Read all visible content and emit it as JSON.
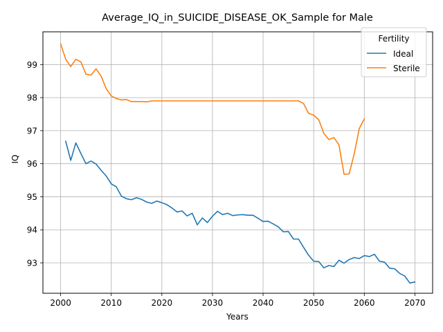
{
  "chart_data": {
    "type": "line",
    "title": "Average_IQ_in_SUICIDE_DISEASE_OK_Sample for Male",
    "xlabel": "Years",
    "ylabel": "IQ",
    "xlim": [
      1996.5,
      2073.5
    ],
    "ylim": [
      92.08,
      99.99
    ],
    "x_ticks": [
      2000,
      2010,
      2020,
      2030,
      2040,
      2050,
      2060,
      2070
    ],
    "y_ticks": [
      93,
      94,
      95,
      96,
      97,
      98,
      99
    ],
    "grid": true,
    "legend": {
      "title": "Fertility",
      "position": "top-right"
    },
    "series": [
      {
        "name": "Ideal",
        "color": "#1f77b4",
        "x": [
          2001,
          2002,
          2003,
          2004,
          2005,
          2006,
          2007,
          2008,
          2009,
          2010,
          2011,
          2012,
          2013,
          2014,
          2015,
          2016,
          2017,
          2018,
          2019,
          2020,
          2021,
          2022,
          2023,
          2024,
          2025,
          2026,
          2027,
          2028,
          2029,
          2030,
          2031,
          2032,
          2033,
          2034,
          2035,
          2036,
          2037,
          2038,
          2039,
          2040,
          2041,
          2042,
          2043,
          2044,
          2045,
          2046,
          2047,
          2048,
          2049,
          2050,
          2051,
          2052,
          2053,
          2054,
          2055,
          2056,
          2057,
          2058,
          2059,
          2060,
          2061,
          2062,
          2063,
          2064,
          2065,
          2066,
          2067,
          2068,
          2069,
          2070
        ],
        "values": [
          96.68,
          96.1,
          96.63,
          96.31,
          96.0,
          96.08,
          95.99,
          95.8,
          95.63,
          95.39,
          95.3,
          95.02,
          94.94,
          94.91,
          94.97,
          94.92,
          94.84,
          94.8,
          94.87,
          94.82,
          94.76,
          94.66,
          94.54,
          94.57,
          94.42,
          94.5,
          94.15,
          94.36,
          94.22,
          94.41,
          94.56,
          94.46,
          94.5,
          94.43,
          94.45,
          94.46,
          94.44,
          94.44,
          94.35,
          94.25,
          94.26,
          94.18,
          94.09,
          93.94,
          93.95,
          93.72,
          93.72,
          93.47,
          93.23,
          93.05,
          93.04,
          92.85,
          92.92,
          92.89,
          93.08,
          92.99,
          93.1,
          93.16,
          93.13,
          93.22,
          93.19,
          93.26,
          93.05,
          93.02,
          92.84,
          92.82,
          92.68,
          92.6,
          92.39,
          92.42
        ]
      },
      {
        "name": "Sterile",
        "color": "#ff7f0e",
        "x": [
          2000,
          2001,
          2002,
          2003,
          2004,
          2005,
          2006,
          2007,
          2008,
          2009,
          2010,
          2011,
          2012,
          2013,
          2014,
          2015,
          2016,
          2017,
          2018,
          2019,
          2020,
          2021,
          2022,
          2023,
          2024,
          2025,
          2026,
          2027,
          2028,
          2029,
          2030,
          2031,
          2032,
          2033,
          2034,
          2035,
          2036,
          2037,
          2038,
          2039,
          2040,
          2041,
          2042,
          2043,
          2044,
          2045,
          2046,
          2047,
          2048,
          2049,
          2050,
          2051,
          2052,
          2053,
          2054,
          2055,
          2056,
          2057,
          2058,
          2059,
          2060
        ],
        "values": [
          99.63,
          99.16,
          98.94,
          99.16,
          99.08,
          98.71,
          98.68,
          98.87,
          98.65,
          98.27,
          98.05,
          97.97,
          97.93,
          97.94,
          97.88,
          97.88,
          97.88,
          97.87,
          97.9,
          97.9,
          97.9,
          97.9,
          97.9,
          97.9,
          97.9,
          97.9,
          97.9,
          97.9,
          97.9,
          97.9,
          97.9,
          97.9,
          97.9,
          97.9,
          97.9,
          97.9,
          97.9,
          97.9,
          97.9,
          97.9,
          97.9,
          97.9,
          97.9,
          97.9,
          97.9,
          97.9,
          97.9,
          97.9,
          97.82,
          97.52,
          97.47,
          97.33,
          96.92,
          96.73,
          96.79,
          96.57,
          95.68,
          95.69,
          96.29,
          97.06,
          97.36
        ]
      }
    ]
  }
}
